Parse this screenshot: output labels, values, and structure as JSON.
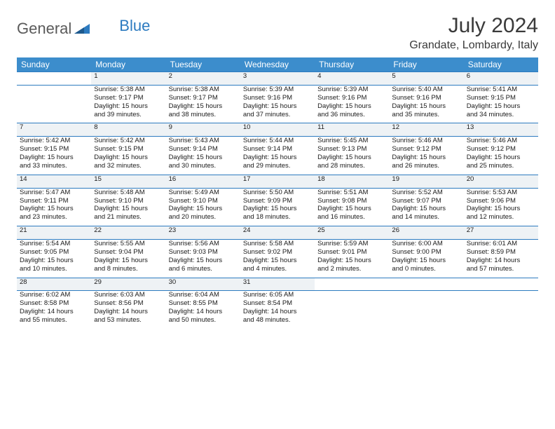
{
  "brand": {
    "part1": "General",
    "part2": "Blue"
  },
  "title": "July 2024",
  "location": "Grandate, Lombardy, Italy",
  "colors": {
    "header_bg": "#3c8dcc",
    "rule": "#2d7bc0",
    "daynum_bg": "#eef2f5"
  },
  "day_headers": [
    "Sunday",
    "Monday",
    "Tuesday",
    "Wednesday",
    "Thursday",
    "Friday",
    "Saturday"
  ],
  "weeks": [
    {
      "nums": [
        "",
        "1",
        "2",
        "3",
        "4",
        "5",
        "6"
      ],
      "cells": [
        {},
        {
          "sunrise": "Sunrise: 5:38 AM",
          "sunset": "Sunset: 9:17 PM",
          "day1": "Daylight: 15 hours",
          "day2": "and 39 minutes."
        },
        {
          "sunrise": "Sunrise: 5:38 AM",
          "sunset": "Sunset: 9:17 PM",
          "day1": "Daylight: 15 hours",
          "day2": "and 38 minutes."
        },
        {
          "sunrise": "Sunrise: 5:39 AM",
          "sunset": "Sunset: 9:16 PM",
          "day1": "Daylight: 15 hours",
          "day2": "and 37 minutes."
        },
        {
          "sunrise": "Sunrise: 5:39 AM",
          "sunset": "Sunset: 9:16 PM",
          "day1": "Daylight: 15 hours",
          "day2": "and 36 minutes."
        },
        {
          "sunrise": "Sunrise: 5:40 AM",
          "sunset": "Sunset: 9:16 PM",
          "day1": "Daylight: 15 hours",
          "day2": "and 35 minutes."
        },
        {
          "sunrise": "Sunrise: 5:41 AM",
          "sunset": "Sunset: 9:15 PM",
          "day1": "Daylight: 15 hours",
          "day2": "and 34 minutes."
        }
      ]
    },
    {
      "nums": [
        "7",
        "8",
        "9",
        "10",
        "11",
        "12",
        "13"
      ],
      "cells": [
        {
          "sunrise": "Sunrise: 5:42 AM",
          "sunset": "Sunset: 9:15 PM",
          "day1": "Daylight: 15 hours",
          "day2": "and 33 minutes."
        },
        {
          "sunrise": "Sunrise: 5:42 AM",
          "sunset": "Sunset: 9:15 PM",
          "day1": "Daylight: 15 hours",
          "day2": "and 32 minutes."
        },
        {
          "sunrise": "Sunrise: 5:43 AM",
          "sunset": "Sunset: 9:14 PM",
          "day1": "Daylight: 15 hours",
          "day2": "and 30 minutes."
        },
        {
          "sunrise": "Sunrise: 5:44 AM",
          "sunset": "Sunset: 9:14 PM",
          "day1": "Daylight: 15 hours",
          "day2": "and 29 minutes."
        },
        {
          "sunrise": "Sunrise: 5:45 AM",
          "sunset": "Sunset: 9:13 PM",
          "day1": "Daylight: 15 hours",
          "day2": "and 28 minutes."
        },
        {
          "sunrise": "Sunrise: 5:46 AM",
          "sunset": "Sunset: 9:12 PM",
          "day1": "Daylight: 15 hours",
          "day2": "and 26 minutes."
        },
        {
          "sunrise": "Sunrise: 5:46 AM",
          "sunset": "Sunset: 9:12 PM",
          "day1": "Daylight: 15 hours",
          "day2": "and 25 minutes."
        }
      ]
    },
    {
      "nums": [
        "14",
        "15",
        "16",
        "17",
        "18",
        "19",
        "20"
      ],
      "cells": [
        {
          "sunrise": "Sunrise: 5:47 AM",
          "sunset": "Sunset: 9:11 PM",
          "day1": "Daylight: 15 hours",
          "day2": "and 23 minutes."
        },
        {
          "sunrise": "Sunrise: 5:48 AM",
          "sunset": "Sunset: 9:10 PM",
          "day1": "Daylight: 15 hours",
          "day2": "and 21 minutes."
        },
        {
          "sunrise": "Sunrise: 5:49 AM",
          "sunset": "Sunset: 9:10 PM",
          "day1": "Daylight: 15 hours",
          "day2": "and 20 minutes."
        },
        {
          "sunrise": "Sunrise: 5:50 AM",
          "sunset": "Sunset: 9:09 PM",
          "day1": "Daylight: 15 hours",
          "day2": "and 18 minutes."
        },
        {
          "sunrise": "Sunrise: 5:51 AM",
          "sunset": "Sunset: 9:08 PM",
          "day1": "Daylight: 15 hours",
          "day2": "and 16 minutes."
        },
        {
          "sunrise": "Sunrise: 5:52 AM",
          "sunset": "Sunset: 9:07 PM",
          "day1": "Daylight: 15 hours",
          "day2": "and 14 minutes."
        },
        {
          "sunrise": "Sunrise: 5:53 AM",
          "sunset": "Sunset: 9:06 PM",
          "day1": "Daylight: 15 hours",
          "day2": "and 12 minutes."
        }
      ]
    },
    {
      "nums": [
        "21",
        "22",
        "23",
        "24",
        "25",
        "26",
        "27"
      ],
      "cells": [
        {
          "sunrise": "Sunrise: 5:54 AM",
          "sunset": "Sunset: 9:05 PM",
          "day1": "Daylight: 15 hours",
          "day2": "and 10 minutes."
        },
        {
          "sunrise": "Sunrise: 5:55 AM",
          "sunset": "Sunset: 9:04 PM",
          "day1": "Daylight: 15 hours",
          "day2": "and 8 minutes."
        },
        {
          "sunrise": "Sunrise: 5:56 AM",
          "sunset": "Sunset: 9:03 PM",
          "day1": "Daylight: 15 hours",
          "day2": "and 6 minutes."
        },
        {
          "sunrise": "Sunrise: 5:58 AM",
          "sunset": "Sunset: 9:02 PM",
          "day1": "Daylight: 15 hours",
          "day2": "and 4 minutes."
        },
        {
          "sunrise": "Sunrise: 5:59 AM",
          "sunset": "Sunset: 9:01 PM",
          "day1": "Daylight: 15 hours",
          "day2": "and 2 minutes."
        },
        {
          "sunrise": "Sunrise: 6:00 AM",
          "sunset": "Sunset: 9:00 PM",
          "day1": "Daylight: 15 hours",
          "day2": "and 0 minutes."
        },
        {
          "sunrise": "Sunrise: 6:01 AM",
          "sunset": "Sunset: 8:59 PM",
          "day1": "Daylight: 14 hours",
          "day2": "and 57 minutes."
        }
      ]
    },
    {
      "nums": [
        "28",
        "29",
        "30",
        "31",
        "",
        "",
        ""
      ],
      "cells": [
        {
          "sunrise": "Sunrise: 6:02 AM",
          "sunset": "Sunset: 8:58 PM",
          "day1": "Daylight: 14 hours",
          "day2": "and 55 minutes."
        },
        {
          "sunrise": "Sunrise: 6:03 AM",
          "sunset": "Sunset: 8:56 PM",
          "day1": "Daylight: 14 hours",
          "day2": "and 53 minutes."
        },
        {
          "sunrise": "Sunrise: 6:04 AM",
          "sunset": "Sunset: 8:55 PM",
          "day1": "Daylight: 14 hours",
          "day2": "and 50 minutes."
        },
        {
          "sunrise": "Sunrise: 6:05 AM",
          "sunset": "Sunset: 8:54 PM",
          "day1": "Daylight: 14 hours",
          "day2": "and 48 minutes."
        },
        {},
        {},
        {}
      ]
    }
  ]
}
